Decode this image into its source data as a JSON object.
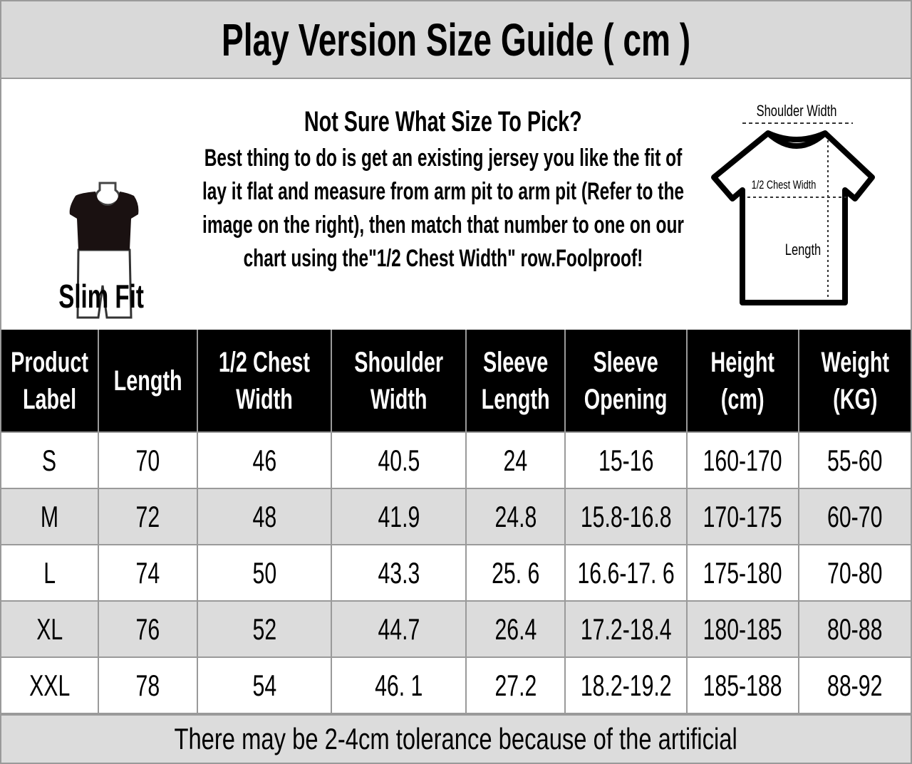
{
  "title": "Play Version Size Guide ( cm )",
  "info": {
    "fit_label": "Slim Fit",
    "heading": "Not Sure What Size To Pick?",
    "text": "Best thing to do is get an existing jersey you like the fit of lay it flat and measure from arm pit to arm pit (Refer to the image on the right), then match that number to one on our chart using the\"1/2 Chest Width\" row.Foolproof!",
    "diagram": {
      "shoulder_width": "Shoulder Width",
      "chest_width": "1/2 Chest Width",
      "length": "Length"
    }
  },
  "table": {
    "headers": [
      [
        "Product",
        "Label"
      ],
      [
        "Length"
      ],
      [
        "1/2 Chest",
        "Width"
      ],
      [
        "Shoulder",
        "Width"
      ],
      [
        "Sleeve",
        "Length"
      ],
      [
        "Sleeve",
        "Opening"
      ],
      [
        "Height",
        "(cm)"
      ],
      [
        "Weight",
        "(KG)"
      ]
    ],
    "rows": [
      [
        "S",
        "70",
        "46",
        "40.5",
        "24",
        "15-16",
        "160-170",
        "55-60"
      ],
      [
        "M",
        "72",
        "48",
        "41.9",
        "24.8",
        "15.8-16.8",
        "170-175",
        "60-70"
      ],
      [
        "L",
        "74",
        "50",
        "43.3",
        "25. 6",
        "16.6-17. 6",
        "175-180",
        "70-80"
      ],
      [
        "XL",
        "76",
        "52",
        "44.7",
        "26.4",
        "17.2-18.4",
        "180-185",
        "80-88"
      ],
      [
        "XXL",
        "78",
        "54",
        "46. 1",
        "27.2",
        "18.2-19.2",
        "185-188",
        "88-92"
      ]
    ]
  },
  "footer": "There may be 2-4cm tolerance because of the artificial"
}
